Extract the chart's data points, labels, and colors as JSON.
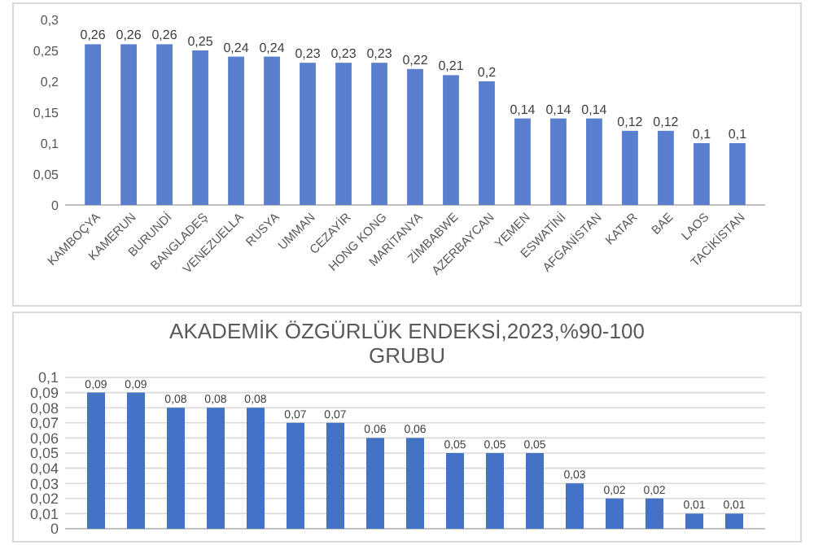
{
  "chart_data": [
    {
      "type": "bar",
      "categories": [
        "KAMBOÇYA",
        "KAMERUN",
        "BURUNDİ",
        "BANGLADEŞ",
        "VENEZUELLA",
        "RUSYA",
        "UMMAN",
        "CEZAYİR",
        "HONG KONG",
        "MARİTANYA",
        "ZİMBABWE",
        "AZERBAYCAN",
        "YEMEN",
        "ESWATİNİ",
        "AFGANİSTAN",
        "KATAR",
        "BAE",
        "LAOS",
        "TACİKİSTAN"
      ],
      "values": [
        0.26,
        0.26,
        0.26,
        0.25,
        0.24,
        0.24,
        0.23,
        0.23,
        0.23,
        0.22,
        0.21,
        0.2,
        0.14,
        0.14,
        0.14,
        0.12,
        0.12,
        0.1,
        0.1
      ],
      "value_labels": [
        "0,26",
        "0,26",
        "0,26",
        "0,25",
        "0,24",
        "0,24",
        "0,23",
        "0,23",
        "0,23",
        "0,22",
        "0,21",
        "0,2",
        "0,14",
        "0,14",
        "0,14",
        "0,12",
        "0,12",
        "0,1",
        "0,1"
      ],
      "color": "#5a7fcf",
      "ylim": [
        0,
        0.3
      ],
      "yticks": [
        {
          "value": 0,
          "label": "0"
        },
        {
          "value": 0.05,
          "label": "0,05"
        },
        {
          "value": 0.1,
          "label": "0,1"
        },
        {
          "value": 0.15,
          "label": "0,15"
        },
        {
          "value": 0.2,
          "label": "0,2"
        },
        {
          "value": 0.25,
          "label": "0,25"
        },
        {
          "value": 0.3,
          "label": "0,3"
        }
      ],
      "grid": false
    },
    {
      "type": "bar",
      "title": "AKADEMİK ÖZGÜRLÜK ENDEKSİ,2023,%90-100 GRUBU",
      "categories": [
        null,
        null,
        null,
        null,
        null,
        null,
        null,
        null,
        null,
        null,
        null,
        null,
        null,
        null,
        null,
        null,
        null
      ],
      "values": [
        0.09,
        0.09,
        0.08,
        0.08,
        0.08,
        0.07,
        0.07,
        0.06,
        0.06,
        0.05,
        0.05,
        0.05,
        0.03,
        0.02,
        0.02,
        0.01,
        0.01
      ],
      "value_labels": [
        "0,09",
        "0,09",
        "0,08",
        "0,08",
        "0,08",
        "0,07",
        "0,07",
        "0,06",
        "0,06",
        "0,05",
        "0,05",
        "0,05",
        "0,03",
        "0,02",
        "0,02",
        "0,01",
        "0,01"
      ],
      "color": "#4472c4",
      "ylim": [
        0,
        0.1
      ],
      "yticks": [
        {
          "value": 0,
          "label": "0"
        },
        {
          "value": 0.01,
          "label": "0,01"
        },
        {
          "value": 0.02,
          "label": "0,02"
        },
        {
          "value": 0.03,
          "label": "0,03"
        },
        {
          "value": 0.04,
          "label": "0,04"
        },
        {
          "value": 0.05,
          "label": "0,05"
        },
        {
          "value": 0.06,
          "label": "0,06"
        },
        {
          "value": 0.07,
          "label": "0,07"
        },
        {
          "value": 0.08,
          "label": "0,08"
        },
        {
          "value": 0.09,
          "label": "0,09"
        },
        {
          "value": 0.1,
          "label": "0,1"
        }
      ],
      "grid": true
    }
  ]
}
